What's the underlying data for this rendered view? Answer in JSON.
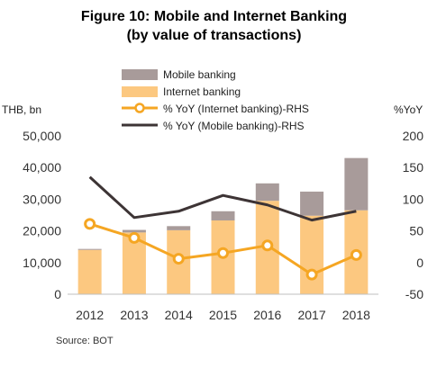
{
  "title_line1": "Figure 10: Mobile and Internet Banking",
  "title_line2": "(by value of transactions)",
  "source": "Source: BOT",
  "colors": {
    "mobile": "#a89b9a",
    "internet": "#fcc880",
    "yoy_internet": "#f5a623",
    "yoy_mobile": "#3d3435"
  },
  "chart_data": {
    "type": "bar",
    "stacked": true,
    "categories": [
      "2012",
      "2013",
      "2014",
      "2015",
      "2016",
      "2017",
      "2018"
    ],
    "left_axis": {
      "label": "THB, bn",
      "ylim": [
        0,
        50000
      ],
      "ticks": [
        "0",
        "10,000",
        "20,000",
        "30,000",
        "40,000",
        "50,000"
      ],
      "tick_values": [
        0,
        10000,
        20000,
        30000,
        40000,
        50000
      ]
    },
    "right_axis": {
      "label": "%YoY",
      "ylim": [
        -50,
        200
      ],
      "ticks": [
        "-50",
        "0",
        "50",
        "100",
        "150",
        "200"
      ],
      "tick_values": [
        -50,
        0,
        50,
        100,
        150,
        200
      ]
    },
    "series": [
      {
        "name": "Internet banking",
        "kind": "bar",
        "axis": "left",
        "values": [
          14000,
          19500,
          20200,
          23300,
          29500,
          24800,
          26500
        ]
      },
      {
        "name": "Mobile banking",
        "kind": "bar",
        "axis": "left",
        "values": [
          300,
          800,
          1300,
          2900,
          5500,
          7600,
          16500
        ]
      },
      {
        "name": "% YoY (Internet banking)-RHS",
        "kind": "line",
        "axis": "right",
        "marker": "circle",
        "values": [
          61,
          39,
          6,
          15,
          27,
          -19,
          12
        ]
      },
      {
        "name": "% YoY (Mobile banking)-RHS",
        "kind": "line",
        "axis": "right",
        "values": [
          135,
          71,
          81,
          106,
          91,
          67,
          81
        ]
      }
    ],
    "legend_position": "top",
    "grid": false
  }
}
